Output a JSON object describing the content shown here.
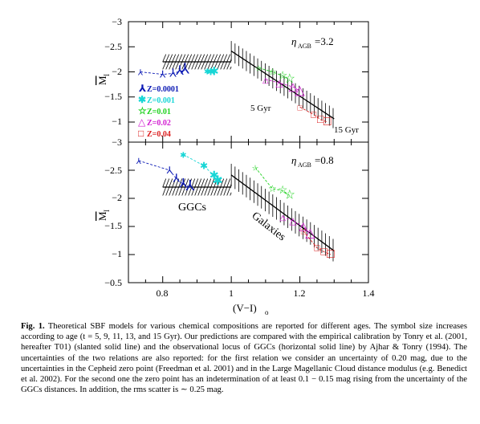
{
  "figure": {
    "x_axis_label": "(V−I)",
    "x_axis_sub": "o",
    "y_axis_label": "M",
    "y_axis_sub": "I",
    "x_ticks": [
      "0.8",
      "1",
      "1.2",
      "1.4"
    ],
    "top_panel": {
      "y_ticks": [
        "−3",
        "−2.5",
        "−2",
        "−1.5",
        "−1"
      ],
      "eta_label": "η",
      "eta_sub": "AGB",
      "eta_value": "=3.2",
      "annotations": [
        "5 Gyr",
        "15 Gyr"
      ],
      "legend": [
        {
          "label": "Z=0.0001",
          "color": "#0a18b4"
        },
        {
          "label": "Z=0.001",
          "color": "#18d6d6"
        },
        {
          "label": "Z=0.01",
          "color": "#1ed21e"
        },
        {
          "label": "Z=0.02",
          "color": "#d21ed2"
        },
        {
          "label": "Z=0.04",
          "color": "#dc1e1e"
        }
      ]
    },
    "bottom_panel": {
      "y_ticks": [
        "−3",
        "−2.5",
        "−2",
        "−1.5",
        "−1",
        "−0.5"
      ],
      "eta_label": "η",
      "eta_sub": "AGB",
      "eta_value": "=0.8",
      "annotations": [
        "GGCs",
        "Galaxies"
      ]
    }
  },
  "chart_data": [
    {
      "type": "scatter",
      "xlabel": "(V−I)o",
      "ylabel": "MI",
      "xlim": [
        0.7,
        1.4
      ],
      "ylim": [
        -1,
        -3
      ],
      "title": "ηAGB=3.2",
      "series": [
        {
          "name": "Z=0.0001",
          "x": [
            0.735,
            0.8,
            0.83,
            0.85,
            0.865
          ],
          "y": [
            -2.0,
            -1.95,
            -1.97,
            -2.01,
            -2.03
          ]
        },
        {
          "name": "Z=0.001",
          "x": [
            0.93,
            0.94,
            0.95
          ],
          "y": [
            -2.02,
            -2.0,
            -2.0
          ]
        },
        {
          "name": "Z=0.01",
          "x": [
            1.08,
            1.12,
            1.15,
            1.17
          ],
          "y": [
            -2.08,
            -2.0,
            -1.92,
            -1.85
          ]
        },
        {
          "name": "Z=0.02",
          "x": [
            1.1,
            1.14,
            1.18,
            1.2
          ],
          "y": [
            -1.85,
            -1.78,
            -1.7,
            -1.62
          ]
        },
        {
          "name": "Z=0.04",
          "x": [
            1.2,
            1.24,
            1.26,
            1.28
          ],
          "y": [
            -1.3,
            -1.15,
            -1.05,
            -1.0
          ]
        }
      ]
    },
    {
      "type": "scatter",
      "xlabel": "(V−I)o",
      "ylabel": "MI",
      "xlim": [
        0.7,
        1.4
      ],
      "ylim": [
        -0.5,
        -3
      ],
      "title": "ηAGB=0.8",
      "series": [
        {
          "name": "Z=0.0001",
          "x": [
            0.73,
            0.82,
            0.84,
            0.86,
            0.88
          ],
          "y": [
            -2.67,
            -2.5,
            -2.35,
            -2.25,
            -2.2
          ]
        },
        {
          "name": "Z=0.001",
          "x": [
            0.86,
            0.92,
            0.95,
            0.96
          ],
          "y": [
            -2.78,
            -2.58,
            -2.4,
            -2.3
          ]
        },
        {
          "name": "Z=0.01",
          "x": [
            1.07,
            1.12,
            1.15,
            1.17
          ],
          "y": [
            -2.55,
            -2.17,
            -2.14,
            -2.05
          ]
        },
        {
          "name": "Z=0.02",
          "x": [
            1.15,
            1.18,
            1.21,
            1.23
          ],
          "y": [
            -1.67,
            -1.6,
            -1.5,
            -1.37
          ]
        },
        {
          "name": "Z=0.04",
          "x": [
            1.21,
            1.25,
            1.27,
            1.29
          ],
          "y": [
            -1.42,
            -1.12,
            -1.05,
            -1.0
          ]
        }
      ]
    }
  ],
  "caption": {
    "fig_label": "Fig. 1.",
    "text": "Theoretical SBF models for various chemical compositions are reported for different ages. The symbol size increases according to age (t = 5, 9, 11, 13, and 15 Gyr). Our predictions are compared with the empirical calibration by Tonry et al. (2001, hereafter T01) (slanted solid line) and the observational locus of GGCs (horizontal solid line) by Ajhar & Tonry (1994). The uncertainties of the two relations are also reported: for the first relation we consider an uncertainty of 0.20 mag, due to the uncertainties in the Cepheid zero point (Freedman et al. 2001) and in the Large Magellanic Cloud distance modulus (e.g. Benedict et al. 2002). For the second one the zero point has an indetermination of at least 0.1 − 0.15 mag rising from the uncertainty of the GGCs distances. In addition, the rms scatter is ∼ 0.25 mag."
  }
}
